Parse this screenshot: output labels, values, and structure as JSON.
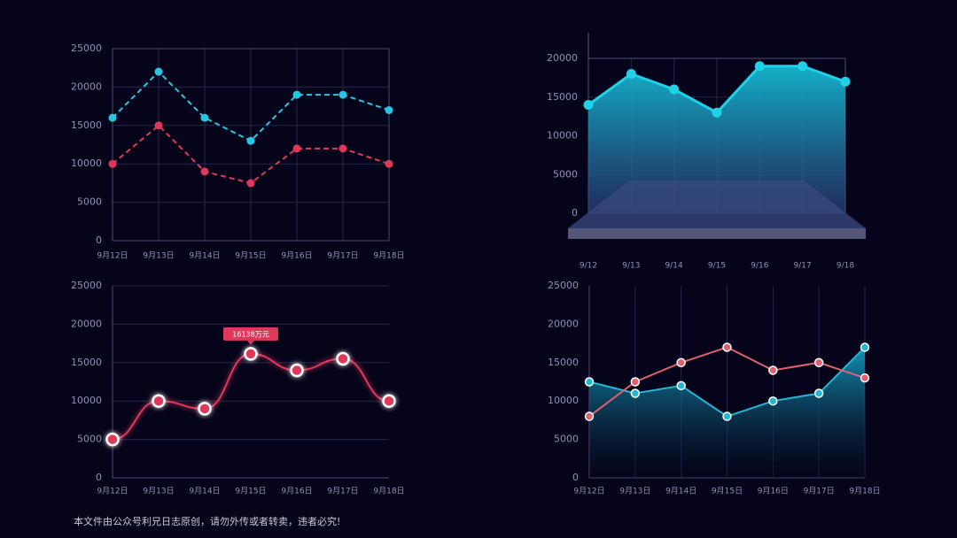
{
  "chart_data": [
    {
      "type": "line",
      "categories": [
        "9月12日",
        "9月13日",
        "9月14日",
        "9月15日",
        "9月16日",
        "9月17日",
        "9月18日"
      ],
      "ylim": [
        0,
        25000
      ],
      "yticks": [
        0,
        5000,
        10000,
        15000,
        20000,
        25000
      ],
      "grid": true,
      "series": [
        {
          "color": "#27c6e2",
          "dashed": true,
          "values": [
            16000,
            22000,
            16000,
            13000,
            19000,
            19000,
            17000
          ]
        },
        {
          "color": "#e0385a",
          "dashed": true,
          "values": [
            10000,
            15000,
            9000,
            7500,
            12000,
            12000,
            10000
          ]
        }
      ]
    },
    {
      "type": "area",
      "categories": [
        "9/12",
        "9/13",
        "9/14",
        "9/15",
        "9/16",
        "9/17",
        "9/18"
      ],
      "ylim": [
        0,
        20000
      ],
      "yticks": [
        0,
        5000,
        10000,
        15000,
        20000
      ],
      "grid": true,
      "series": [
        {
          "color": "#1fd2e8",
          "values": [
            14000,
            18000,
            16000,
            13000,
            19000,
            19000,
            17000
          ]
        }
      ]
    },
    {
      "type": "line",
      "categories": [
        "9月12日",
        "9月13日",
        "9月14日",
        "9月15日",
        "9月16日",
        "9月17日",
        "9月18日"
      ],
      "ylim": [
        0,
        25000
      ],
      "yticks": [
        0,
        5000,
        10000,
        15000,
        20000,
        25000
      ],
      "grid": true,
      "series": [
        {
          "color": "#e0385a",
          "smooth": true,
          "glow": true,
          "values": [
            5000,
            10000,
            9000,
            16138,
            14000,
            15500,
            10000
          ],
          "value_labels": [
            null,
            null,
            null,
            "16138万元",
            null,
            null,
            null
          ]
        }
      ]
    },
    {
      "type": "line",
      "categories": [
        "9月12日",
        "9月13日",
        "9月14日",
        "9月15日",
        "9月16日",
        "9月17日",
        "9月18日"
      ],
      "ylim": [
        0,
        25000
      ],
      "yticks": [
        0,
        5000,
        10000,
        15000,
        20000,
        25000
      ],
      "grid": true,
      "series": [
        {
          "color": "#22b8d6",
          "area": true,
          "values": [
            12500,
            11000,
            12000,
            8000,
            10000,
            11000,
            17000
          ]
        },
        {
          "color": "#e0606e",
          "values": [
            8000,
            12500,
            15000,
            17000,
            14000,
            15000,
            13000
          ]
        }
      ]
    }
  ],
  "footer": "本文件由公众号利兄日志原创，请勿外传或者转卖，违者必究!"
}
